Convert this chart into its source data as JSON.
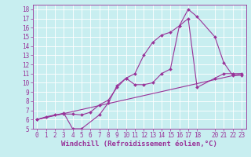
{
  "xlabel": "Windchill (Refroidissement éolien,°C)",
  "background_color": "#c8eef0",
  "line_color": "#993399",
  "grid_color": "#ffffff",
  "xlim": [
    -0.5,
    23.5
  ],
  "ylim": [
    5,
    18.5
  ],
  "xticks": [
    0,
    1,
    2,
    3,
    4,
    5,
    6,
    7,
    8,
    9,
    10,
    11,
    12,
    13,
    14,
    15,
    16,
    17,
    18,
    20,
    21,
    22,
    23
  ],
  "yticks": [
    5,
    6,
    7,
    8,
    9,
    10,
    11,
    12,
    13,
    14,
    15,
    16,
    17,
    18
  ],
  "line1_x": [
    0,
    1,
    2,
    3,
    4,
    5,
    6,
    7,
    8,
    9,
    10,
    11,
    12,
    13,
    14,
    15,
    16,
    17,
    18,
    20,
    21,
    22,
    23
  ],
  "line1_y": [
    6.0,
    6.3,
    6.5,
    6.6,
    6.6,
    6.5,
    6.8,
    7.6,
    8.1,
    9.5,
    10.5,
    11.0,
    13.0,
    14.4,
    15.2,
    15.5,
    16.2,
    18.0,
    17.2,
    15.0,
    12.2,
    10.8,
    10.8
  ],
  "line2_x": [
    0,
    3,
    4,
    5,
    7,
    8,
    9,
    10,
    11,
    12,
    13,
    14,
    15,
    16,
    17,
    18,
    20,
    21,
    22,
    23
  ],
  "line2_y": [
    6.0,
    6.7,
    5.0,
    5.0,
    6.5,
    7.8,
    9.7,
    10.5,
    9.8,
    9.8,
    10.0,
    11.0,
    11.5,
    16.2,
    17.0,
    9.5,
    10.5,
    11.0,
    11.0,
    11.0
  ],
  "line3_x": [
    0,
    23
  ],
  "line3_y": [
    6.0,
    11.0
  ],
  "font_size_xlabel": 6.5,
  "font_size_tick": 5.5,
  "marker_size": 2.0,
  "line_width": 0.8
}
